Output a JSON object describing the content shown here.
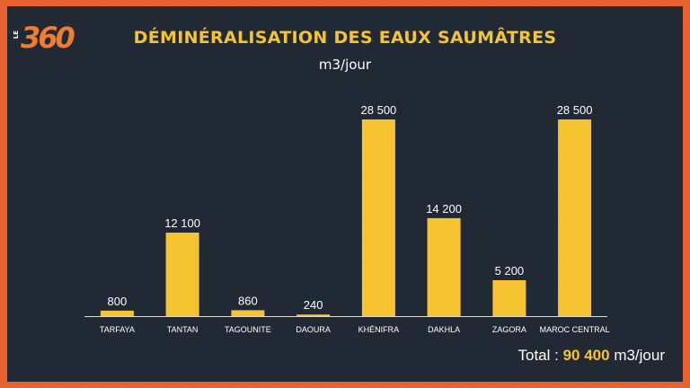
{
  "logo": {
    "prefix": "LE",
    "number": "360"
  },
  "chart_data": {
    "type": "bar",
    "title": "DÉMINÉRALISATION DES EAUX SAUMÂTRES",
    "subtitle": "m3/jour",
    "categories": [
      "TARFAYA",
      "TANTAN",
      "TAGOUNITE",
      "DAOURA",
      "KHÉNIFRA",
      "DAKHLA",
      "ZAGORA",
      "MAROC CENTRAL"
    ],
    "values": [
      800,
      12100,
      860,
      240,
      28500,
      14200,
      5200,
      28500
    ],
    "value_labels": [
      "800",
      "12 100",
      "860",
      "240",
      "28 500",
      "14 200",
      "5 200",
      "28 500"
    ],
    "ylim": [
      0,
      28500
    ],
    "grid": false,
    "bar_color": "#f6c431"
  },
  "total": {
    "label": "Total :",
    "value": "90 400",
    "unit": "m3/jour"
  },
  "colors": {
    "background": "#1f2733",
    "frame": "#e8622f",
    "accent": "#f6c431",
    "text": "#ffffff"
  }
}
